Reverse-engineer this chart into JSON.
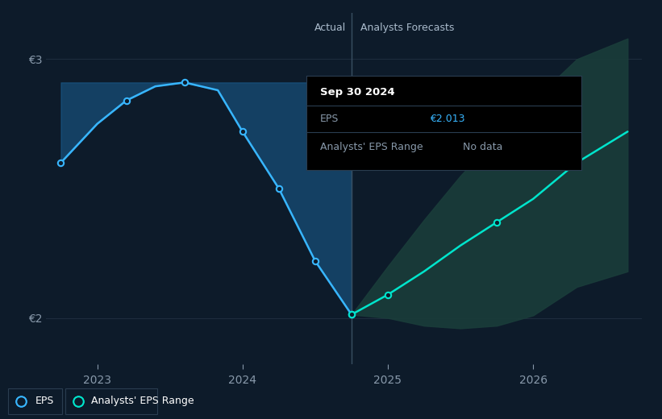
{
  "bg_color": "#0d1b2a",
  "plot_bg_color": "#0d1b2a",
  "grid_color": "#1e2d3d",
  "axis_label_color": "#8899aa",
  "divider_color": "#3a4f62",
  "ylabel_3": "€3",
  "ylabel_2": "€2",
  "y_min": 1.82,
  "y_max": 3.18,
  "xtick_labels": [
    "2023",
    "2024",
    "2025",
    "2026"
  ],
  "xtick_positions": [
    2023,
    2024,
    2025,
    2026
  ],
  "x_min": 2022.65,
  "x_max": 2026.75,
  "divider_x": 2024.75,
  "actual_label": "Actual",
  "forecast_label": "Analysts Forecasts",
  "eps_x": [
    2022.75,
    2023.0,
    2023.2,
    2023.4,
    2023.6,
    2023.83,
    2024.0,
    2024.25,
    2024.5,
    2024.75
  ],
  "eps_y": [
    2.6,
    2.75,
    2.84,
    2.895,
    2.91,
    2.88,
    2.72,
    2.5,
    2.22,
    2.013
  ],
  "forecast_x": [
    2024.75,
    2025.0,
    2025.25,
    2025.5,
    2025.75,
    2026.0,
    2026.3,
    2026.65
  ],
  "forecast_y": [
    2.013,
    2.09,
    2.18,
    2.28,
    2.37,
    2.46,
    2.6,
    2.72
  ],
  "forecast_upper": [
    2.013,
    2.2,
    2.38,
    2.55,
    2.7,
    2.84,
    3.0,
    3.08
  ],
  "forecast_lower": [
    2.013,
    2.0,
    1.97,
    1.96,
    1.97,
    2.01,
    2.12,
    2.18
  ],
  "eps_line_color": "#38b6ff",
  "eps_fill_color": "#1a5a8a",
  "forecast_line_color": "#00e5cc",
  "forecast_fill_color": "#1a3d3a",
  "tooltip_title": "Sep 30 2024",
  "tooltip_eps_label": "EPS",
  "tooltip_eps_value": "€2.013",
  "tooltip_range_label": "Analysts' EPS Range",
  "tooltip_range_value": "No data",
  "tooltip_eps_color": "#38b6ff",
  "tooltip_sep_color": "#2a3d50",
  "legend_eps_label": "EPS",
  "legend_range_label": "Analysts' EPS Range"
}
